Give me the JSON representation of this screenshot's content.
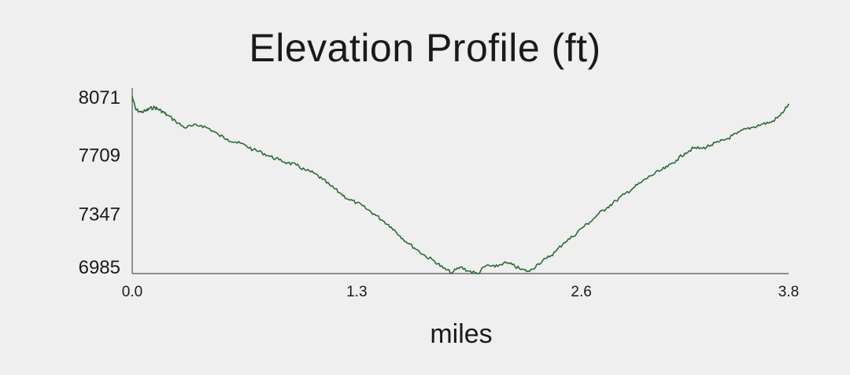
{
  "chart_data": {
    "type": "line",
    "title": "Elevation Profile (ft)",
    "xlabel": "miles",
    "ylabel": "",
    "xlim": [
      0.0,
      3.8
    ],
    "ylim": [
      6985,
      8071
    ],
    "x_ticks": [
      0.0,
      1.3,
      2.6,
      3.8
    ],
    "x_tick_labels": [
      "0.0",
      "1.3",
      "2.6",
      "3.8"
    ],
    "y_ticks": [
      6985,
      7347,
      7709,
      8071
    ],
    "y_tick_labels": [
      "6985",
      "7347",
      "7709",
      "8071"
    ],
    "grid": false,
    "legend": "none",
    "line_color": "#2e6b35",
    "series": [
      {
        "x": [
          0.0,
          0.02,
          0.05,
          0.08,
          0.1,
          0.13,
          0.15,
          0.18,
          0.2,
          0.25,
          0.3,
          0.35,
          0.4,
          0.45,
          0.5,
          0.55,
          0.6,
          0.65,
          0.7,
          0.75,
          0.8,
          0.85,
          0.9,
          0.95,
          1.0,
          1.05,
          1.1,
          1.15,
          1.2,
          1.25,
          1.3,
          1.35,
          1.4,
          1.45,
          1.5,
          1.55,
          1.6,
          1.65,
          1.7,
          1.75,
          1.8,
          1.85,
          1.9,
          1.95,
          2.0,
          2.05,
          2.1,
          2.15,
          2.2,
          2.25,
          2.3,
          2.35,
          2.4,
          2.45,
          2.5,
          2.55,
          2.6,
          2.65,
          2.7,
          2.75,
          2.8,
          2.85,
          2.9,
          2.95,
          3.0,
          3.05,
          3.1,
          3.15,
          3.2,
          3.25,
          3.3,
          3.35,
          3.4,
          3.45,
          3.5,
          3.55,
          3.6,
          3.65,
          3.7,
          3.75,
          3.8
        ],
        "y": [
          8068,
          7988,
          7972,
          7980,
          7993,
          8001,
          7990,
          7972,
          7955,
          7918,
          7878,
          7888,
          7891,
          7868,
          7832,
          7808,
          7787,
          7772,
          7742,
          7725,
          7700,
          7680,
          7662,
          7648,
          7618,
          7600,
          7562,
          7520,
          7480,
          7440,
          7418,
          7385,
          7350,
          7310,
          7270,
          7215,
          7170,
          7130,
          7090,
          7062,
          7018,
          6990,
          7025,
          7000,
          6985,
          7035,
          7025,
          7050,
          7040,
          7010,
          6998,
          7045,
          7078,
          7118,
          7175,
          7210,
          7262,
          7300,
          7350,
          7390,
          7430,
          7470,
          7508,
          7545,
          7582,
          7610,
          7638,
          7678,
          7722,
          7752,
          7750,
          7770,
          7790,
          7812,
          7840,
          7868,
          7882,
          7900,
          7910,
          7950,
          8020
        ]
      }
    ]
  }
}
